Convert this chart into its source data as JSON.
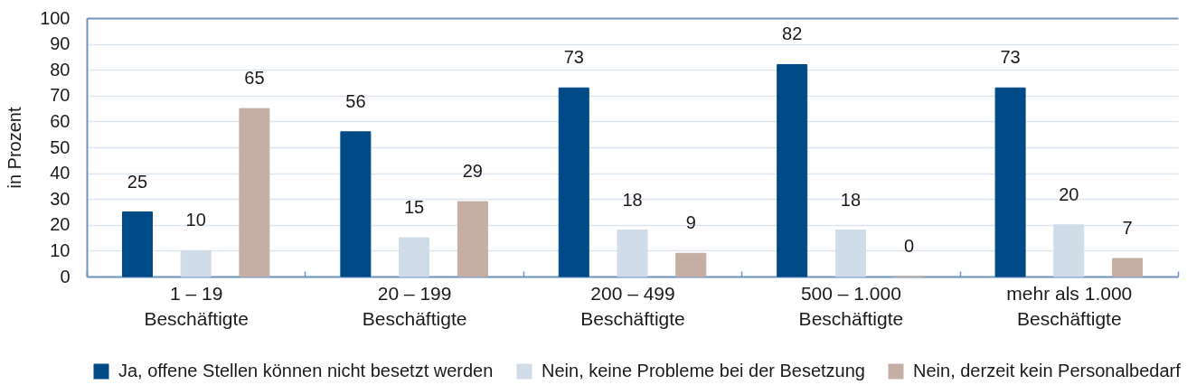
{
  "chart_data": {
    "type": "bar",
    "ylabel": "in Prozent",
    "categories": [
      "1 – 19 Beschäftigte",
      "20 – 199 Beschäftigte",
      "200 – 499 Beschäftigte",
      "500 – 1.000 Beschäftigte",
      "mehr als 1.000 Beschäftigte"
    ],
    "series": [
      {
        "name": "Ja, offene Stellen können nicht besetzt werden",
        "color": "#004a88",
        "values": [
          25,
          56,
          73,
          82,
          73
        ]
      },
      {
        "name": "Nein, keine Probleme bei der Besetzung",
        "color": "#d0dce8",
        "values": [
          10,
          15,
          18,
          18,
          20
        ]
      },
      {
        "name": "Nein, derzeit kein Personalbedarf",
        "color": "#c5afa5",
        "values": [
          65,
          29,
          9,
          0,
          7
        ]
      }
    ],
    "ylim": [
      0,
      100
    ],
    "yticks": [
      0,
      10,
      20,
      30,
      40,
      50,
      60,
      70,
      80,
      90,
      100
    ],
    "grid": "y",
    "data_labels": true,
    "legend": "bottom"
  }
}
